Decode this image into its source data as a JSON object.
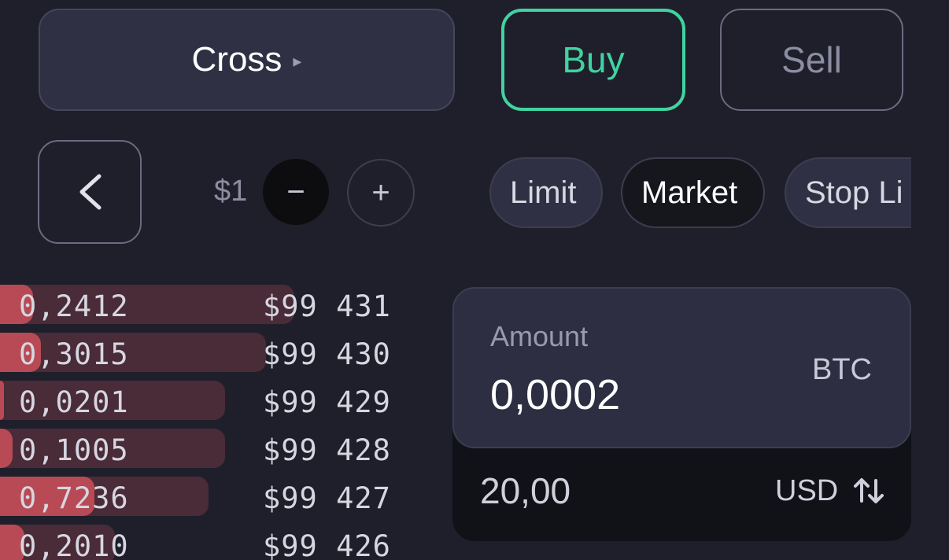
{
  "margin_mode": {
    "label": "Cross",
    "arrow": "▸"
  },
  "side": {
    "buy_label": "Buy",
    "sell_label": "Sell",
    "selected": "Buy"
  },
  "step": {
    "value": "$1",
    "minus": "−",
    "plus": "+"
  },
  "order_types": [
    {
      "label": "Limit",
      "selected": false
    },
    {
      "label": "Market",
      "selected": true
    },
    {
      "label": "Stop Li",
      "selected": false
    }
  ],
  "order_book": [
    {
      "qty": "0,2412",
      "price": "$99 431",
      "depth": 0.72,
      "fill": 0.08
    },
    {
      "qty": "0,3015",
      "price": "$99 430",
      "depth": 0.65,
      "fill": 0.1
    },
    {
      "qty": "0,0201",
      "price": "$99 429",
      "depth": 0.55,
      "fill": 0.01
    },
    {
      "qty": "0,1005",
      "price": "$99 428",
      "depth": 0.55,
      "fill": 0.03
    },
    {
      "qty": "0,7236",
      "price": "$99 427",
      "depth": 0.51,
      "fill": 0.23
    },
    {
      "qty": "0,2010",
      "price": "$99 426",
      "depth": 0.28,
      "fill": 0.06
    }
  ],
  "amount": {
    "label": "Amount",
    "value": "0,0002",
    "unit": "BTC",
    "usd_value": "20,00",
    "usd_unit": "USD"
  },
  "colors": {
    "accent_buy": "#40d3a1",
    "ask_fill": "#b84a55",
    "ask_depth": "#4a2b38"
  }
}
